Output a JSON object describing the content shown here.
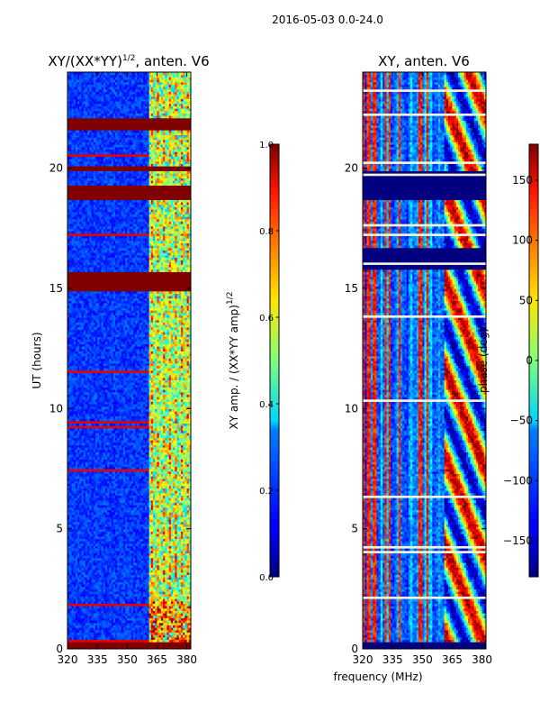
{
  "figure": {
    "supertitle": "2016-05-03 0.0-24.0",
    "xlabel_shared": "frequency (MHz)"
  },
  "chart_data": [
    {
      "type": "heatmap",
      "title_main": "XY/(XX*YY)",
      "title_exp": "1/2",
      "title_tail": ", anten. V6",
      "xlabel": "",
      "ylabel": "UT (hours)",
      "xlim": [
        320,
        382
      ],
      "ylim": [
        0,
        24
      ],
      "x_ticks": [
        320,
        335,
        350,
        365,
        380
      ],
      "y_ticks": [
        0,
        5,
        10,
        15,
        20
      ],
      "colorbar": {
        "label_main": "XY amp. / (XX*YY amp)",
        "label_exp": "1/2",
        "range": [
          0.0,
          1.0
        ],
        "ticks": [
          "0.0",
          "0.2",
          "0.4",
          "0.6",
          "0.8",
          "1.0"
        ],
        "tick_values": [
          0.0,
          0.2,
          0.4,
          0.6,
          0.8,
          1.0
        ]
      },
      "saturated_hour_bands": [
        [
          0.0,
          0.3
        ],
        [
          21.6,
          22.1
        ],
        [
          19.9,
          20.1
        ],
        [
          18.7,
          19.3
        ],
        [
          14.9,
          15.7
        ]
      ],
      "bright_band_mhz": [
        361,
        382
      ]
    },
    {
      "type": "heatmap",
      "title_main": "XY, anten. V6",
      "title_exp": "",
      "title_tail": "",
      "xlabel": "frequency (MHz)",
      "ylabel": "",
      "xlim": [
        320,
        382
      ],
      "ylim": [
        0,
        24
      ],
      "x_ticks": [
        320,
        335,
        350,
        365,
        380
      ],
      "y_ticks": [
        0,
        5,
        10,
        15,
        20
      ],
      "colorbar": {
        "label_main": "phase (deg)",
        "label_exp": "",
        "range": [
          -180,
          180
        ],
        "ticks": [
          "−150",
          "−100",
          "−50",
          "0",
          "50",
          "100",
          "150"
        ],
        "tick_values": [
          -150,
          -100,
          -50,
          0,
          50,
          100,
          150
        ]
      },
      "blank_hour_bands": [
        [
          15.8,
          16.7
        ],
        [
          18.7,
          19.9
        ],
        [
          0.0,
          0.3
        ]
      ]
    }
  ]
}
